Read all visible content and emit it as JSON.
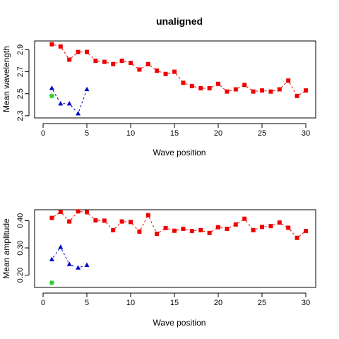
{
  "title": "unaligned",
  "colors": {
    "red": "#ee0000",
    "blue": "#0000cc",
    "green": "#22cc22",
    "axis": "#000000"
  },
  "chart_data": [
    {
      "type": "scatter",
      "title": "unaligned",
      "xlabel": "Wave position",
      "ylabel": "Mean wavelength",
      "xlim": [
        0,
        30.6
      ],
      "ylim": [
        2.28,
        2.98
      ],
      "xticks": [
        0,
        5,
        10,
        15,
        20,
        25,
        30
      ],
      "yticks": [
        "2.3",
        "2.5",
        "2.7",
        "2.9"
      ],
      "series": [
        {
          "color": "#ee0000",
          "marker": "square",
          "line": "dashed",
          "x": [
            1,
            2,
            3,
            4,
            5,
            6,
            7,
            8,
            9,
            10,
            11,
            12,
            13,
            14,
            15,
            16,
            17,
            18,
            19,
            20,
            21,
            22,
            23,
            24,
            25,
            26,
            27,
            28,
            29,
            30
          ],
          "y": [
            2.95,
            2.93,
            2.81,
            2.88,
            2.88,
            2.8,
            2.79,
            2.77,
            2.8,
            2.78,
            2.72,
            2.77,
            2.71,
            2.68,
            2.7,
            2.6,
            2.57,
            2.55,
            2.55,
            2.59,
            2.52,
            2.54,
            2.58,
            2.52,
            2.53,
            2.52,
            2.54,
            2.62,
            2.48,
            2.53
          ]
        },
        {
          "color": "#0000cc",
          "marker": "triangle",
          "line": "dashed",
          "x": [
            1,
            2,
            3,
            4,
            5
          ],
          "y": [
            2.55,
            2.41,
            2.41,
            2.32,
            2.54
          ]
        },
        {
          "color": "#22cc22",
          "marker": "star",
          "line": "none",
          "x": [
            1
          ],
          "y": [
            2.48
          ]
        }
      ]
    },
    {
      "type": "scatter",
      "title": "",
      "xlabel": "Wave position",
      "ylabel": "Mean amplitude",
      "xlim": [
        0,
        30.6
      ],
      "ylim": [
        0.155,
        0.44
      ],
      "xticks": [
        0,
        5,
        10,
        15,
        20,
        25,
        30
      ],
      "yticks": [
        "0.20",
        "0.30",
        "0.40"
      ],
      "series": [
        {
          "color": "#ee0000",
          "marker": "square",
          "line": "dashed",
          "x": [
            1,
            2,
            3,
            4,
            5,
            6,
            7,
            8,
            9,
            10,
            11,
            12,
            13,
            14,
            15,
            16,
            17,
            18,
            19,
            20,
            21,
            22,
            23,
            24,
            25,
            26,
            27,
            28,
            29,
            30
          ],
          "y": [
            0.41,
            0.432,
            0.397,
            0.434,
            0.431,
            0.401,
            0.4,
            0.365,
            0.397,
            0.395,
            0.36,
            0.42,
            0.352,
            0.373,
            0.363,
            0.37,
            0.362,
            0.365,
            0.355,
            0.376,
            0.37,
            0.386,
            0.407,
            0.365,
            0.377,
            0.38,
            0.393,
            0.374,
            0.337,
            0.362
          ]
        },
        {
          "color": "#0000cc",
          "marker": "triangle",
          "line": "dashed",
          "x": [
            1,
            2,
            3,
            4,
            5
          ],
          "y": [
            0.258,
            0.303,
            0.24,
            0.227,
            0.237
          ]
        },
        {
          "color": "#22cc22",
          "marker": "star",
          "line": "none",
          "x": [
            1
          ],
          "y": [
            0.172
          ]
        }
      ]
    }
  ]
}
